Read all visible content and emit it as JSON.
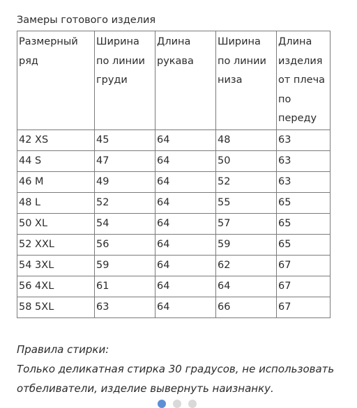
{
  "caption": "Замеры готового изделия",
  "table": {
    "headers": [
      [
        "Размерный",
        "ряд"
      ],
      [
        "Ширина",
        "по линии",
        "груди"
      ],
      [
        "Длина",
        "рукава"
      ],
      [
        "Ширина",
        "по линии",
        "низа"
      ],
      [
        "Длина",
        "изделия",
        "от плеча",
        "по",
        "переду"
      ]
    ],
    "rows": [
      [
        "42 XS",
        "45",
        "64",
        "48",
        "63"
      ],
      [
        "44 S",
        "47",
        "64",
        "50",
        "63"
      ],
      [
        "46 M",
        "49",
        "64",
        "52",
        "63"
      ],
      [
        "48 L",
        "52",
        "64",
        "55",
        "65"
      ],
      [
        "50 XL",
        "54",
        "64",
        "57",
        "65"
      ],
      [
        "52 XXL",
        "56",
        "64",
        "59",
        "65"
      ],
      [
        "54 3XL",
        "59",
        "64",
        "62",
        "67"
      ],
      [
        "56 4XL",
        "61",
        "64",
        "64",
        "67"
      ],
      [
        "58 5XL",
        "63",
        "64",
        "66",
        "67"
      ]
    ]
  },
  "notes": {
    "heading": "Правила стирки:",
    "line1": "Только деликатная стирка 30 градусов, не использовать",
    "line2": "отбеливатели, изделие вывернуть наизнанку."
  },
  "colors": {
    "text": "#2b2b2b",
    "border": "#7a7a7a",
    "dot_blue": "#5b8fd6",
    "dot_grey": "#d9d9d9"
  }
}
